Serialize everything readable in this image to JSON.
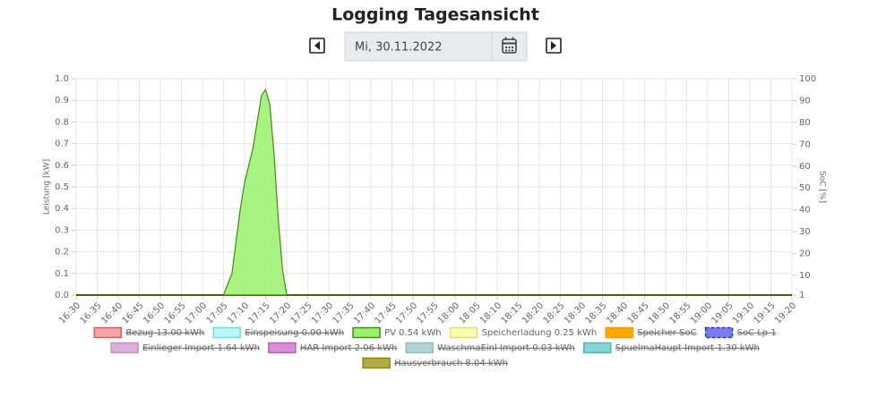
{
  "header": {
    "title": "Logging Tagesansicht",
    "date": "Mi, 30.11.2022"
  },
  "chart_data": {
    "type": "area",
    "y_label": "Leistung [kW]",
    "y2_label": "SoC [%]",
    "xlim": [
      "16:30",
      "19:20"
    ],
    "xticks": [
      "16:30",
      "16:35",
      "16:40",
      "16:45",
      "16:50",
      "16:55",
      "17:00",
      "17:05",
      "17:10",
      "17:15",
      "17:20",
      "17:25",
      "17:30",
      "17:35",
      "17:40",
      "17:45",
      "17:50",
      "17:55",
      "18:00",
      "18:05",
      "18:10",
      "18:15",
      "18:20",
      "18:25",
      "18:30",
      "18:35",
      "18:40",
      "18:45",
      "18:50",
      "18:55",
      "19:00",
      "19:05",
      "19:10",
      "19:15",
      "19:20"
    ],
    "ylim": [
      0,
      1
    ],
    "yticks": [
      {
        "value": 0,
        "label": "0.0"
      },
      0.1,
      0.2,
      0.3,
      0.4,
      0.5,
      0.6,
      0.7,
      0.8,
      0.9,
      {
        "value": 1,
        "label": "1.0"
      }
    ],
    "y2lim": [
      1,
      100
    ],
    "y2ticks": [
      1,
      10,
      20,
      30,
      40,
      50,
      60,
      70,
      80,
      90,
      100
    ],
    "grid": true,
    "legend_position": "bottom",
    "series": [
      {
        "name": "Bezug 13.00 kWh",
        "color": "#f4a4a4",
        "border_color": "#e05a5a",
        "hidden": true
      },
      {
        "name": "Einspeisung 0.00 kWh",
        "color": "#b9f6f6",
        "border_color": "#6fe0e0",
        "hidden": true
      },
      {
        "name": "PV 0.54 kWh",
        "color": "#9af06e",
        "border_color": "#3f8f0c",
        "hidden": false,
        "x": [
          "17:05",
          "17:07",
          "17:09",
          "17:10",
          "17:12",
          "17:13",
          "17:14",
          "17:15",
          "17:16",
          "17:17",
          "17:18",
          "17:19",
          "17:20"
        ],
        "values": [
          0,
          0.1,
          0.4,
          0.52,
          0.68,
          0.8,
          0.92,
          0.95,
          0.88,
          0.65,
          0.35,
          0.12,
          0
        ]
      },
      {
        "name": "Speicherladung 0.25 kWh",
        "color": "#fafab0",
        "border_color": "#e0e070",
        "hidden": false
      },
      {
        "name": "Speicher SoC",
        "color": "#ffa500",
        "border_color": "#ff9900",
        "hidden": true
      },
      {
        "name": "SoC Lp 1",
        "color": "#7b7bf0",
        "border_color": "#3030d0",
        "hidden": true
      },
      {
        "name": "Einlieger Import 1.64 kWh",
        "color": "#dcb0d8",
        "border_color": "#c890c4",
        "hidden": true
      },
      {
        "name": "HAR Import 2.06 kWh",
        "color": "#d88ed8",
        "border_color": "#b860b8",
        "hidden": true
      },
      {
        "name": "WaschmaEinl Import 0.03 kWh",
        "color": "#b4d4d4",
        "border_color": "#94bcbc",
        "hidden": true
      },
      {
        "name": "SpuelmaHaupt Import 1.30 kWh",
        "color": "#86d4d4",
        "border_color": "#50b8b8",
        "hidden": true
      },
      {
        "name": "Hausverbrauch 8.04 kWh",
        "color": "#b0ac40",
        "border_color": "#8c8820",
        "hidden": true
      }
    ]
  }
}
